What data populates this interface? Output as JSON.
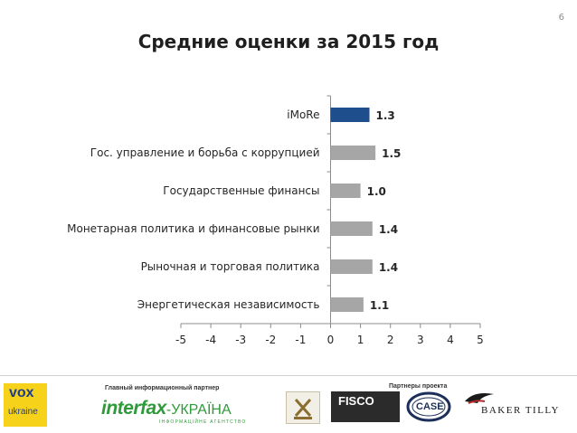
{
  "page_number": "6",
  "chart_data": {
    "type": "bar",
    "orientation": "horizontal",
    "title": "Средние оценки за 2015 год",
    "categories": [
      "iMoRe",
      "Гос. управление и борьба с коррупцией",
      "Государственные финансы",
      "Монетарная политика и финансовые рынки",
      "Рыночная и торговая политика",
      "Энергетическая независимость"
    ],
    "values": [
      1.3,
      1.5,
      1.0,
      1.4,
      1.4,
      1.1
    ],
    "value_labels": [
      "1.3",
      "1.5",
      "1.0",
      "1.4",
      "1.4",
      "1.1"
    ],
    "xlim": [
      -5,
      5
    ],
    "x_ticks": [
      "-5",
      "-4",
      "-3",
      "-2",
      "-1",
      "0",
      "1",
      "2",
      "3",
      "4",
      "5"
    ],
    "bar_colors": [
      "#1f4e8c",
      "#a6a6a6",
      "#a6a6a6",
      "#a6a6a6",
      "#a6a6a6",
      "#a6a6a6"
    ],
    "grid": false
  },
  "footer": {
    "main_partner_label": "Главный информационный партнер",
    "partners_label": "Партнеры проекта",
    "vox_logo": {
      "line1": "vox",
      "line2": "ukraine"
    },
    "interfax_logo": {
      "brand": "interfax",
      "suffix": "-УКРАЇНА",
      "sub": "ІНФОРМАЦІЙНЕ АГЕНТСТВО"
    },
    "fisco_logo": "FISCO",
    "case_logo": "CASE",
    "baker_tilly_logo": "BAKER TILLY"
  }
}
